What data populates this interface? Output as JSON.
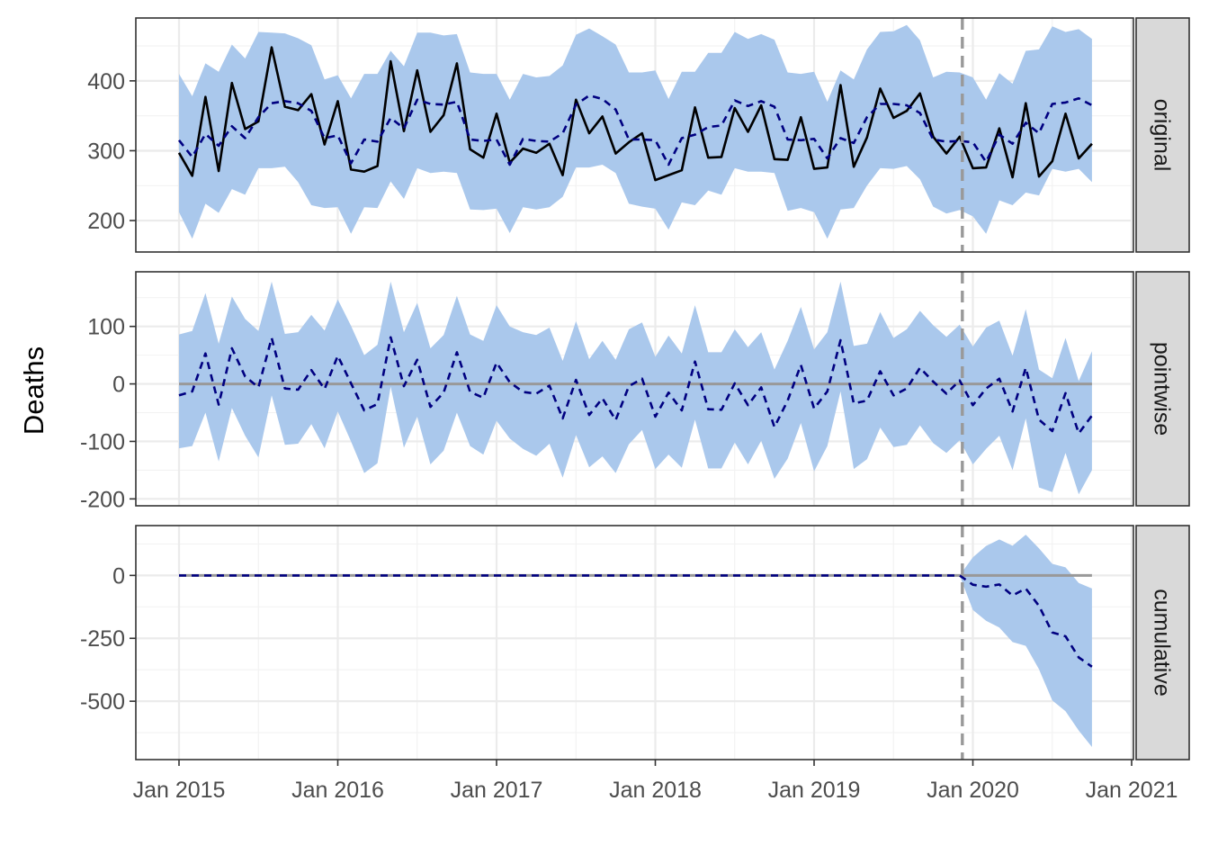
{
  "chart_data": {
    "type": "line",
    "ylabel": "Deaths",
    "xlabel": "",
    "x_start": "2015-01",
    "x_frequency": "monthly",
    "x_tick_labels": [
      "Jan 2015",
      "Jan 2016",
      "Jan 2017",
      "Jan 2018",
      "Jan 2019",
      "Jan 2020",
      "Jan 2021"
    ],
    "intervention": "2019-12",
    "colors": {
      "band": "#aac8ec",
      "observed": "#000000",
      "predicted": "#000080",
      "zero_line": "#999999",
      "intervention_line": "#999999",
      "strip": "#d9d9d9"
    },
    "panels": [
      {
        "name": "original",
        "ylim": [
          155,
          490
        ],
        "y_ticks": [
          200,
          300,
          400
        ],
        "y_tick_labels": [
          "200",
          "300",
          "400"
        ],
        "observed": [
          297,
          264,
          377,
          271,
          397,
          331,
          342,
          448,
          363,
          358,
          381,
          309,
          371,
          273,
          270,
          278,
          428,
          328,
          415,
          327,
          351,
          425,
          302,
          290,
          353,
          283,
          303,
          297,
          310,
          265,
          373,
          325,
          349,
          296,
          312,
          325,
          258,
          265,
          272,
          362,
          290,
          291,
          361,
          327,
          365,
          288,
          287,
          348,
          274,
          276,
          394,
          277,
          319,
          389,
          347,
          357,
          382,
          320,
          296,
          320,
          275,
          276,
          332,
          262,
          368,
          263,
          285,
          353,
          289,
          310
        ],
        "predicted": [
          315,
          291,
          324,
          307,
          335,
          318,
          348,
          368,
          371,
          368,
          357,
          318,
          322,
          282,
          316,
          313,
          347,
          332,
          373,
          367,
          366,
          370,
          316,
          314,
          316,
          280,
          317,
          314,
          313,
          325,
          366,
          379,
          374,
          359,
          316,
          316,
          315,
          280,
          318,
          323,
          334,
          336,
          372,
          364,
          371,
          363,
          316,
          315,
          317,
          289,
          318,
          311,
          348,
          367,
          367,
          365,
          354,
          316,
          313,
          314,
          312,
          284,
          323,
          310,
          340,
          325,
          367,
          369,
          375,
          365
        ],
        "upper": [
          410,
          378,
          425,
          413,
          452,
          432,
          470,
          469,
          468,
          461,
          451,
          402,
          408,
          375,
          410,
          410,
          443,
          421,
          469,
          469,
          465,
          467,
          412,
          410,
          410,
          373,
          410,
          405,
          407,
          422,
          466,
          475,
          464,
          452,
          412,
          412,
          415,
          374,
          413,
          413,
          440,
          440,
          470,
          460,
          467,
          459,
          412,
          410,
          413,
          370,
          415,
          402,
          445,
          470,
          471,
          480,
          458,
          405,
          413,
          412,
          405,
          373,
          411,
          396,
          443,
          445,
          478,
          470,
          474,
          460
        ],
        "lower": [
          212,
          174,
          224,
          211,
          245,
          237,
          275,
          275,
          277,
          255,
          222,
          218,
          219,
          181,
          219,
          218,
          256,
          231,
          275,
          268,
          270,
          268,
          216,
          215,
          217,
          182,
          219,
          216,
          219,
          234,
          276,
          276,
          280,
          268,
          224,
          220,
          217,
          187,
          226,
          222,
          243,
          237,
          275,
          270,
          270,
          268,
          214,
          218,
          212,
          174,
          216,
          218,
          250,
          275,
          274,
          278,
          259,
          220,
          210,
          215,
          206,
          181,
          229,
          222,
          240,
          236,
          274,
          270,
          274,
          255
        ]
      },
      {
        "name": "pointwise",
        "ylim": [
          -212,
          195
        ],
        "y_ticks": [
          -200,
          -100,
          0,
          100
        ],
        "y_tick_labels": [
          "-200",
          "-100",
          "0",
          "100"
        ],
        "zero_line": true,
        "predicted": [
          -20,
          -13,
          53,
          -36,
          62,
          13,
          -6,
          80,
          -8,
          -10,
          24,
          -9,
          49,
          1,
          -46,
          -35,
          81,
          -4,
          42,
          -40,
          -15,
          55,
          -14,
          -24,
          37,
          3,
          -14,
          -17,
          -3,
          -60,
          7,
          -54,
          -25,
          -63,
          -4,
          9,
          -57,
          -15,
          -46,
          39,
          -44,
          -45,
          1,
          -37,
          -6,
          -75,
          -29,
          33,
          -43,
          -13,
          76,
          -34,
          -29,
          22,
          -20,
          -8,
          28,
          4,
          -17,
          6,
          -37,
          -8,
          9,
          -48,
          28,
          -62,
          -82,
          -16,
          -86,
          -55
        ],
        "upper": [
          86,
          92,
          158,
          70,
          152,
          113,
          92,
          178,
          87,
          90,
          120,
          93,
          147,
          101,
          50,
          68,
          178,
          90,
          141,
          62,
          85,
          153,
          86,
          75,
          137,
          100,
          90,
          85,
          98,
          40,
          109,
          43,
          75,
          42,
          95,
          107,
          47,
          84,
          53,
          137,
          55,
          55,
          95,
          64,
          90,
          25,
          75,
          134,
          60,
          90,
          178,
          66,
          70,
          125,
          80,
          95,
          127,
          102,
          82,
          103,
          65,
          98,
          110,
          49,
          130,
          25,
          10,
          80,
          5,
          57
        ],
        "lower": [
          -112,
          -108,
          -50,
          -135,
          -42,
          -90,
          -128,
          -20,
          -106,
          -104,
          -70,
          -112,
          -48,
          -100,
          -155,
          -138,
          -5,
          -111,
          -57,
          -140,
          -116,
          -50,
          -108,
          -123,
          -64,
          -95,
          -113,
          -125,
          -104,
          -163,
          -89,
          -145,
          -126,
          -155,
          -105,
          -80,
          -148,
          -123,
          -146,
          -62,
          -147,
          -147,
          -102,
          -140,
          -99,
          -165,
          -130,
          -68,
          -152,
          -108,
          -13,
          -148,
          -131,
          -76,
          -110,
          -106,
          -72,
          -103,
          -120,
          -98,
          -140,
          -113,
          -90,
          -150,
          -60,
          -180,
          -188,
          -120,
          -192,
          -150
        ]
      },
      {
        "name": "cumulative",
        "ylim": [
          -732,
          198
        ],
        "y_ticks": [
          -500,
          -250,
          0
        ],
        "y_tick_labels": [
          "-500",
          "-250",
          "0"
        ],
        "zero_line": true,
        "cumulative_start_index": 59,
        "predicted": [
          0,
          0,
          0,
          0,
          0,
          0,
          0,
          0,
          0,
          0,
          0,
          0,
          0,
          0,
          0,
          0,
          0,
          0,
          0,
          0,
          0,
          0,
          0,
          0,
          0,
          0,
          0,
          0,
          0,
          0,
          0,
          0,
          0,
          0,
          0,
          0,
          0,
          0,
          0,
          0,
          0,
          0,
          0,
          0,
          0,
          0,
          0,
          0,
          0,
          0,
          0,
          0,
          0,
          0,
          0,
          0,
          0,
          0,
          0,
          0,
          -37,
          -45,
          -36,
          -80,
          -52,
          -121,
          -227,
          -242,
          -326,
          -363
        ],
        "upper": [
          0,
          0,
          0,
          0,
          0,
          0,
          0,
          0,
          0,
          0,
          0,
          0,
          0,
          0,
          0,
          0,
          0,
          0,
          0,
          0,
          0,
          0,
          0,
          0,
          0,
          0,
          0,
          0,
          0,
          0,
          0,
          0,
          0,
          0,
          0,
          0,
          0,
          0,
          0,
          0,
          0,
          0,
          0,
          0,
          0,
          0,
          0,
          0,
          0,
          0,
          0,
          0,
          0,
          0,
          0,
          0,
          0,
          0,
          0,
          0,
          72,
          117,
          143,
          118,
          162,
          108,
          46,
          32,
          -30,
          -52
        ],
        "lower": [
          0,
          0,
          0,
          0,
          0,
          0,
          0,
          0,
          0,
          0,
          0,
          0,
          0,
          0,
          0,
          0,
          0,
          0,
          0,
          0,
          0,
          0,
          0,
          0,
          0,
          0,
          0,
          0,
          0,
          0,
          0,
          0,
          0,
          0,
          0,
          0,
          0,
          0,
          0,
          0,
          0,
          0,
          0,
          0,
          0,
          0,
          0,
          0,
          0,
          0,
          0,
          0,
          0,
          0,
          0,
          0,
          0,
          0,
          0,
          0,
          -137,
          -180,
          -207,
          -265,
          -280,
          -373,
          -497,
          -540,
          -617,
          -682
        ]
      }
    ]
  }
}
